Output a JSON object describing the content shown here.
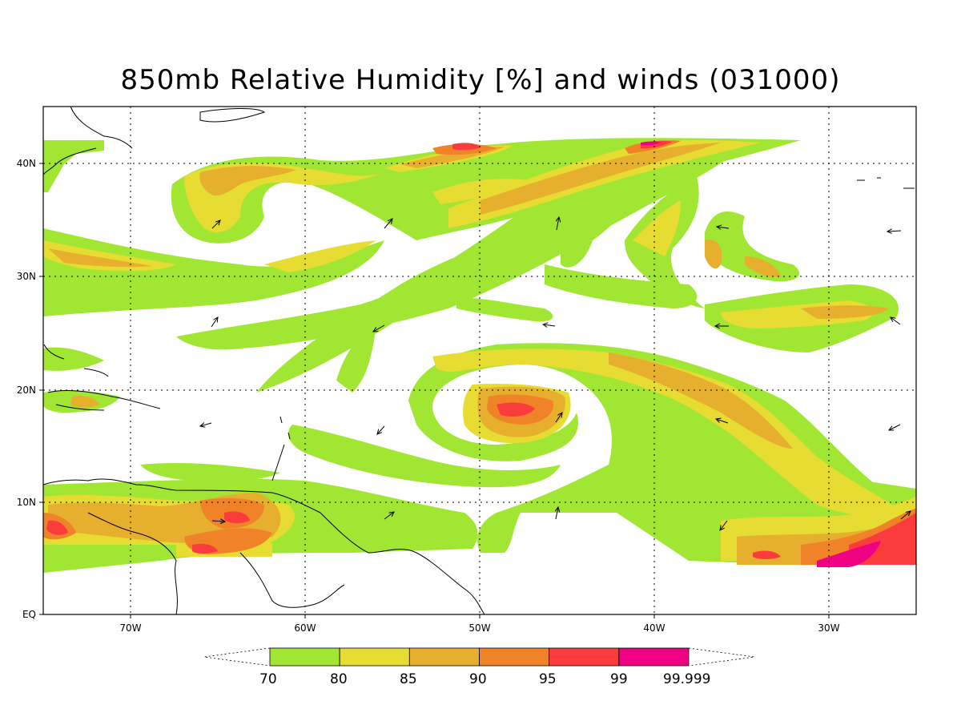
{
  "title": "850mb Relative Humidity [%] and winds (031000)",
  "axes": {
    "x_ticks": [
      "70W",
      "60W",
      "50W",
      "40W",
      "30W"
    ],
    "y_ticks": [
      "EQ",
      "10N",
      "20N",
      "30N",
      "40N"
    ]
  },
  "colorbar": {
    "colors": [
      "#a0e632",
      "#e6dc32",
      "#e6af2d",
      "#f08228",
      "#fa3c3c",
      "#f00082"
    ],
    "labels": [
      "70",
      "80",
      "85",
      "90",
      "95",
      "99",
      "99.999"
    ]
  }
}
